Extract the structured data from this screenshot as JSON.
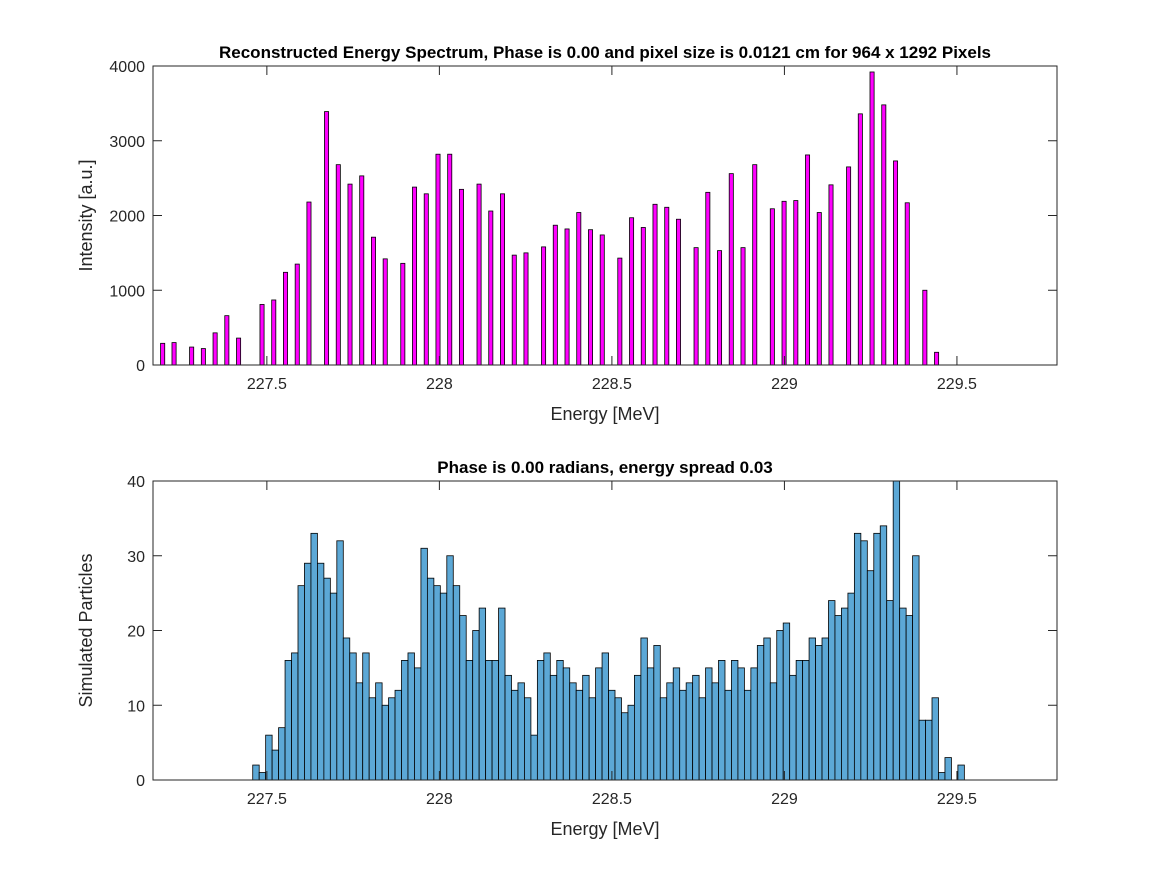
{
  "chart_data": [
    {
      "type": "bar",
      "title": "Reconstructed Energy Spectrum, Phase is 0.00 and pixel size is 0.0121 cm for 964 x 1292 Pixels",
      "xlabel": "Energy [MeV]",
      "ylabel": "Intensity [a.u.]",
      "xlim": [
        227.17,
        229.79
      ],
      "ylim": [
        0,
        4000
      ],
      "xticks": [
        227.5,
        228,
        228.5,
        229,
        229.5
      ],
      "xtick_labels": [
        "227.5",
        "228",
        "228.5",
        "229",
        "229.5"
      ],
      "yticks": [
        0,
        1000,
        2000,
        3000,
        4000
      ],
      "ytick_labels": [
        "0",
        "1000",
        "2000",
        "3000",
        "4000"
      ],
      "bar_width": 0.012,
      "grid": false,
      "colors": {
        "bar_fill": "#ff00ff",
        "bar_edge": "#000000"
      },
      "x": [
        227.198,
        227.231,
        227.282,
        227.316,
        227.35,
        227.384,
        227.418,
        227.486,
        227.52,
        227.554,
        227.588,
        227.622,
        227.673,
        227.707,
        227.741,
        227.775,
        227.809,
        227.843,
        227.894,
        227.928,
        227.962,
        227.996,
        228.03,
        228.064,
        228.115,
        228.149,
        228.183,
        228.217,
        228.251,
        228.302,
        228.336,
        228.37,
        228.404,
        228.438,
        228.472,
        228.523,
        228.557,
        228.591,
        228.625,
        228.659,
        228.693,
        228.744,
        228.778,
        228.812,
        228.846,
        228.88,
        228.914,
        228.965,
        228.999,
        229.033,
        229.067,
        229.101,
        229.135,
        229.186,
        229.22,
        229.254,
        229.288,
        229.322,
        229.356,
        229.407,
        229.441
      ],
      "values": [
        290,
        300,
        240,
        220,
        430,
        660,
        360,
        810,
        870,
        1240,
        1350,
        2180,
        3390,
        2680,
        2420,
        2530,
        1710,
        1420,
        1360,
        2380,
        2290,
        2820,
        2820,
        2350,
        2420,
        2060,
        2290,
        1470,
        1500,
        1580,
        1870,
        1820,
        2040,
        1810,
        1740,
        1430,
        1970,
        1840,
        2150,
        2110,
        1950,
        1570,
        2310,
        1530,
        2560,
        1570,
        2680,
        2090,
        2190,
        2200,
        2810,
        2040,
        2410,
        2650,
        3360,
        3920,
        3480,
        2730,
        2170,
        1000,
        170
      ]
    },
    {
      "type": "bar",
      "title": "Phase is 0.00 radians, energy spread 0.03",
      "xlabel": "Energy [MeV]",
      "ylabel": "Simulated Particles",
      "xlim": [
        227.17,
        229.79
      ],
      "ylim": [
        0,
        40
      ],
      "xticks": [
        227.5,
        228,
        228.5,
        229,
        229.5
      ],
      "xtick_labels": [
        "227.5",
        "228",
        "228.5",
        "229",
        "229.5"
      ],
      "yticks": [
        0,
        10,
        20,
        30,
        40
      ],
      "ytick_labels": [
        "0",
        "10",
        "20",
        "30",
        "40"
      ],
      "bin_start": 227.459,
      "bin_width": 0.01875,
      "grid": false,
      "colors": {
        "bar_fill": "#5ca8d6",
        "bar_edge": "#000000"
      },
      "values": [
        2,
        1,
        6,
        4,
        7,
        16,
        17,
        26,
        29,
        33,
        29,
        27,
        25,
        32,
        19,
        17,
        13,
        17,
        11,
        13,
        10,
        11,
        12,
        16,
        17,
        15,
        31,
        27,
        26,
        25,
        30,
        26,
        22,
        16,
        20,
        23,
        16,
        16,
        23,
        14,
        12,
        13,
        11,
        6,
        16,
        17,
        14,
        16,
        15,
        13,
        12,
        14,
        11,
        15,
        17,
        12,
        11,
        9,
        10,
        14,
        19,
        15,
        18,
        11,
        13,
        15,
        12,
        13,
        14,
        11,
        15,
        13,
        16,
        12,
        16,
        15,
        12,
        15,
        18,
        19,
        13,
        20,
        21,
        14,
        16,
        16,
        19,
        18,
        19,
        24,
        22,
        23,
        25,
        33,
        32,
        28,
        33,
        34,
        24,
        40,
        23,
        22,
        30,
        8,
        8,
        11,
        1,
        3,
        0,
        2
      ]
    }
  ]
}
